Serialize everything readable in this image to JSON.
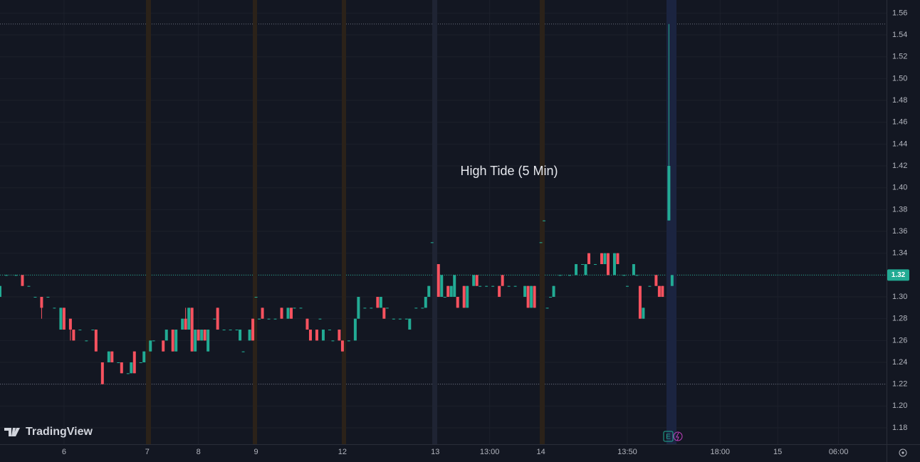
{
  "chart_data": {
    "type": "candlestick",
    "title": "High Tide (5 Min)",
    "watermark": "TradingView",
    "event_marker": "E",
    "up_color": "#22ab94",
    "down_color": "#f7525f",
    "grid": true,
    "x": [
      0,
      2,
      5,
      7,
      9,
      11,
      13,
      15,
      17,
      19,
      20,
      22,
      23,
      25,
      27,
      29,
      30,
      32,
      34,
      35,
      37,
      38,
      40,
      41,
      42,
      44,
      45,
      47,
      48,
      51,
      52,
      54,
      55,
      57,
      58,
      59,
      60,
      61,
      62,
      63,
      64,
      65,
      67,
      68,
      70,
      72,
      74,
      75,
      76,
      78,
      79,
      80,
      81,
      82,
      84,
      86,
      88,
      90,
      91,
      92,
      94,
      96,
      97,
      99,
      100,
      101,
      103,
      104,
      106,
      107,
      109,
      111,
      112,
      114,
      116,
      118,
      119,
      120,
      121,
      123,
      125,
      127,
      128,
      130,
      132,
      133,
      134,
      135,
      137,
      138,
      139,
      140,
      141,
      142,
      143,
      145,
      146,
      148,
      149,
      150,
      152,
      154,
      156,
      157,
      159,
      161,
      164,
      165,
      166,
      167,
      169,
      170,
      171,
      172,
      173,
      175,
      178,
      180,
      182,
      183,
      184,
      186,
      188,
      189,
      190,
      192,
      193,
      195,
      196,
      198,
      199,
      200,
      201,
      203,
      205,
      206,
      207,
      209,
      210
    ],
    "open": [
      1.3,
      1.32,
      1.32,
      1.32,
      1.31,
      1.3,
      1.3,
      1.3,
      1.29,
      1.27,
      1.29,
      1.28,
      1.27,
      1.27,
      1.26,
      1.27,
      1.27,
      1.24,
      1.24,
      1.25,
      1.24,
      1.24,
      1.23,
      1.23,
      1.25,
      1.24,
      1.24,
      1.25,
      1.26,
      1.26,
      1.26,
      1.27,
      1.25,
      1.27,
      1.28,
      1.27,
      1.29,
      1.25,
      1.27,
      1.26,
      1.27,
      1.25,
      1.28,
      1.29,
      1.27,
      1.27,
      1.27,
      1.26,
      1.25,
      1.26,
      1.28,
      1.3,
      1.28,
      1.29,
      1.28,
      1.28,
      1.29,
      1.28,
      1.29,
      1.29,
      1.29,
      1.28,
      1.27,
      1.27,
      1.28,
      1.26,
      1.27,
      1.26,
      1.27,
      1.26,
      1.26,
      1.26,
      1.28,
      1.29,
      1.29,
      1.3,
      1.29,
      1.29,
      1.29,
      1.28,
      1.28,
      1.28,
      1.27,
      1.29,
      1.29,
      1.29,
      1.3,
      1.35,
      1.33,
      1.3,
      1.3,
      1.31,
      1.3,
      1.3,
      1.3,
      1.31,
      1.29,
      1.31,
      1.32,
      1.31,
      1.31,
      1.31,
      1.31,
      1.32,
      1.31,
      1.31,
      1.3,
      1.31,
      1.29,
      1.31,
      1.35,
      1.37,
      1.29,
      1.3,
      1.3,
      1.32,
      1.32,
      1.32,
      1.33,
      1.32,
      1.34,
      1.33,
      1.34,
      1.33,
      1.34,
      1.32,
      1.34,
      1.32,
      1.31,
      1.32,
      1.32,
      1.31,
      1.28,
      1.31,
      1.32,
      1.31,
      1.31,
      1.37,
      1.31
    ],
    "high": [
      1.31,
      1.32,
      1.32,
      1.32,
      1.31,
      1.3,
      1.3,
      1.3,
      1.29,
      1.29,
      1.29,
      1.28,
      1.27,
      1.27,
      1.26,
      1.27,
      1.27,
      1.24,
      1.25,
      1.25,
      1.24,
      1.24,
      1.23,
      1.24,
      1.25,
      1.24,
      1.25,
      1.26,
      1.26,
      1.26,
      1.27,
      1.27,
      1.27,
      1.28,
      1.29,
      1.29,
      1.29,
      1.27,
      1.27,
      1.27,
      1.27,
      1.27,
      1.28,
      1.29,
      1.27,
      1.27,
      1.27,
      1.27,
      1.25,
      1.27,
      1.28,
      1.3,
      1.28,
      1.29,
      1.28,
      1.28,
      1.29,
      1.29,
      1.29,
      1.29,
      1.29,
      1.28,
      1.27,
      1.27,
      1.28,
      1.27,
      1.27,
      1.26,
      1.27,
      1.26,
      1.26,
      1.28,
      1.3,
      1.29,
      1.29,
      1.3,
      1.3,
      1.29,
      1.29,
      1.28,
      1.28,
      1.28,
      1.28,
      1.29,
      1.29,
      1.3,
      1.31,
      1.35,
      1.33,
      1.32,
      1.3,
      1.31,
      1.31,
      1.32,
      1.3,
      1.31,
      1.31,
      1.32,
      1.32,
      1.31,
      1.31,
      1.31,
      1.31,
      1.32,
      1.31,
      1.31,
      1.31,
      1.31,
      1.31,
      1.31,
      1.35,
      1.37,
      1.29,
      1.3,
      1.31,
      1.32,
      1.32,
      1.33,
      1.33,
      1.33,
      1.34,
      1.33,
      1.34,
      1.34,
      1.34,
      1.34,
      1.34,
      1.32,
      1.31,
      1.33,
      1.32,
      1.31,
      1.29,
      1.31,
      1.32,
      1.31,
      1.31,
      1.55,
      1.32
    ],
    "low": [
      1.3,
      1.32,
      1.32,
      1.31,
      1.31,
      1.3,
      1.28,
      1.3,
      1.29,
      1.27,
      1.27,
      1.26,
      1.26,
      1.27,
      1.26,
      1.27,
      1.25,
      1.22,
      1.24,
      1.24,
      1.24,
      1.23,
      1.23,
      1.23,
      1.23,
      1.24,
      1.24,
      1.25,
      1.26,
      1.25,
      1.26,
      1.25,
      1.25,
      1.27,
      1.27,
      1.27,
      1.25,
      1.25,
      1.26,
      1.26,
      1.26,
      1.25,
      1.28,
      1.27,
      1.27,
      1.27,
      1.27,
      1.26,
      1.25,
      1.26,
      1.26,
      1.3,
      1.28,
      1.28,
      1.28,
      1.28,
      1.28,
      1.28,
      1.28,
      1.29,
      1.29,
      1.27,
      1.26,
      1.26,
      1.28,
      1.26,
      1.27,
      1.26,
      1.26,
      1.25,
      1.26,
      1.26,
      1.28,
      1.29,
      1.29,
      1.29,
      1.29,
      1.28,
      1.29,
      1.28,
      1.28,
      1.28,
      1.27,
      1.29,
      1.29,
      1.29,
      1.3,
      1.35,
      1.3,
      1.3,
      1.3,
      1.3,
      1.3,
      1.3,
      1.29,
      1.29,
      1.29,
      1.31,
      1.31,
      1.31,
      1.31,
      1.31,
      1.3,
      1.31,
      1.31,
      1.31,
      1.3,
      1.29,
      1.29,
      1.29,
      1.35,
      1.37,
      1.29,
      1.3,
      1.3,
      1.32,
      1.32,
      1.32,
      1.33,
      1.32,
      1.33,
      1.33,
      1.33,
      1.33,
      1.32,
      1.32,
      1.33,
      1.32,
      1.31,
      1.32,
      1.32,
      1.28,
      1.28,
      1.31,
      1.31,
      1.3,
      1.3,
      1.37,
      1.31
    ],
    "close": [
      1.31,
      1.32,
      1.32,
      1.31,
      1.31,
      1.3,
      1.29,
      1.3,
      1.29,
      1.29,
      1.27,
      1.27,
      1.26,
      1.27,
      1.26,
      1.27,
      1.25,
      1.22,
      1.25,
      1.24,
      1.24,
      1.23,
      1.23,
      1.24,
      1.23,
      1.24,
      1.25,
      1.26,
      1.26,
      1.25,
      1.27,
      1.25,
      1.27,
      1.28,
      1.27,
      1.29,
      1.25,
      1.27,
      1.26,
      1.27,
      1.26,
      1.27,
      1.28,
      1.27,
      1.27,
      1.27,
      1.27,
      1.27,
      1.25,
      1.27,
      1.26,
      1.3,
      1.28,
      1.28,
      1.28,
      1.28,
      1.28,
      1.29,
      1.28,
      1.29,
      1.29,
      1.27,
      1.26,
      1.26,
      1.28,
      1.27,
      1.27,
      1.26,
      1.26,
      1.25,
      1.26,
      1.28,
      1.3,
      1.29,
      1.29,
      1.29,
      1.3,
      1.28,
      1.29,
      1.28,
      1.28,
      1.28,
      1.28,
      1.29,
      1.29,
      1.3,
      1.31,
      1.35,
      1.3,
      1.32,
      1.3,
      1.3,
      1.31,
      1.32,
      1.29,
      1.29,
      1.31,
      1.32,
      1.31,
      1.31,
      1.31,
      1.31,
      1.3,
      1.31,
      1.31,
      1.31,
      1.31,
      1.29,
      1.31,
      1.29,
      1.35,
      1.37,
      1.29,
      1.3,
      1.31,
      1.32,
      1.32,
      1.33,
      1.33,
      1.33,
      1.33,
      1.33,
      1.33,
      1.34,
      1.32,
      1.34,
      1.33,
      1.32,
      1.31,
      1.33,
      1.32,
      1.28,
      1.29,
      1.31,
      1.31,
      1.3,
      1.3,
      1.42,
      1.32
    ],
    "xlim": [
      0,
      277
    ],
    "xticks": [
      {
        "value": 20,
        "label": "6"
      },
      {
        "value": 46,
        "label": "7"
      },
      {
        "value": 62,
        "label": "8"
      },
      {
        "value": 80,
        "label": "9"
      },
      {
        "value": 107,
        "label": "12"
      },
      {
        "value": 136,
        "label": "13"
      },
      {
        "value": 153,
        "label": "13:00"
      },
      {
        "value": 169,
        "label": "14"
      },
      {
        "value": 196,
        "label": "13:50"
      },
      {
        "value": 225,
        "label": "18:00"
      },
      {
        "value": 243,
        "label": "15"
      },
      {
        "value": 262,
        "label": "06:00"
      }
    ],
    "ylim": [
      1.165,
      1.572
    ],
    "yticks": [
      1.18,
      {
        "value": 1.2,
        "label": "1.20"
      },
      1.22,
      1.24,
      1.26,
      1.28,
      {
        "value": 1.3,
        "label": "1.30"
      },
      1.32,
      1.34,
      1.36,
      1.38,
      {
        "value": 1.4,
        "label": "1.40"
      },
      1.42,
      1.44,
      1.46,
      1.48,
      {
        "value": 1.5,
        "label": "1.50"
      },
      1.52,
      1.54,
      1.56
    ],
    "high_line": 1.55,
    "low_line": 1.22,
    "last_price": 1.32
  }
}
